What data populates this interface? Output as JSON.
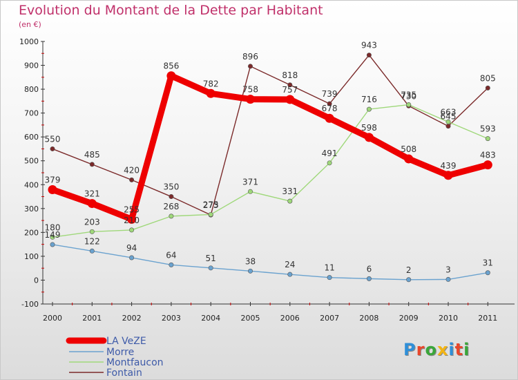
{
  "title": "Evolution du Montant de la Dette par Habitant",
  "subtitle": "(en €)",
  "logo": {
    "text": "Proxiti",
    "colors": [
      "#2f8fd8",
      "#e9472b",
      "#3aa63a",
      "#f3b414",
      "#2f8fd8",
      "#e9472b",
      "#3aa63a"
    ]
  },
  "chart_data": {
    "type": "line",
    "categories": [
      "2000",
      "2001",
      "2002",
      "2003",
      "2004",
      "2005",
      "2006",
      "2007",
      "2008",
      "2009",
      "2010",
      "2011"
    ],
    "ylim": [
      -100,
      1000
    ],
    "yticks": [
      -100,
      0,
      100,
      200,
      300,
      400,
      500,
      600,
      700,
      800,
      900,
      1000
    ],
    "grid": false,
    "legend_position": "bottom-left",
    "series": [
      {
        "name": "Fontain",
        "color": "#7b2a2a",
        "thick": false,
        "values": [
          550,
          485,
          420,
          350,
          273,
          896,
          818,
          739,
          943,
          730,
          645,
          805
        ]
      },
      {
        "name": "Montfaucon",
        "color": "#9fd87a",
        "thick": false,
        "values": [
          180,
          203,
          210,
          268,
          275,
          371,
          331,
          491,
          716,
          735,
          663,
          593
        ]
      },
      {
        "name": "Morre",
        "color": "#6aa2cf",
        "thick": false,
        "values": [
          149,
          122,
          94,
          64,
          51,
          38,
          24,
          11,
          6,
          2,
          3,
          31
        ]
      },
      {
        "name": "LA VeZE",
        "color": "#ee0000",
        "thick": true,
        "values": [
          379,
          321,
          255,
          856,
          782,
          758,
          757,
          678,
          598,
          508,
          439,
          483
        ]
      }
    ],
    "legend_order": [
      "LA VeZE",
      "Morre",
      "Montfaucon",
      "Fontain"
    ]
  }
}
